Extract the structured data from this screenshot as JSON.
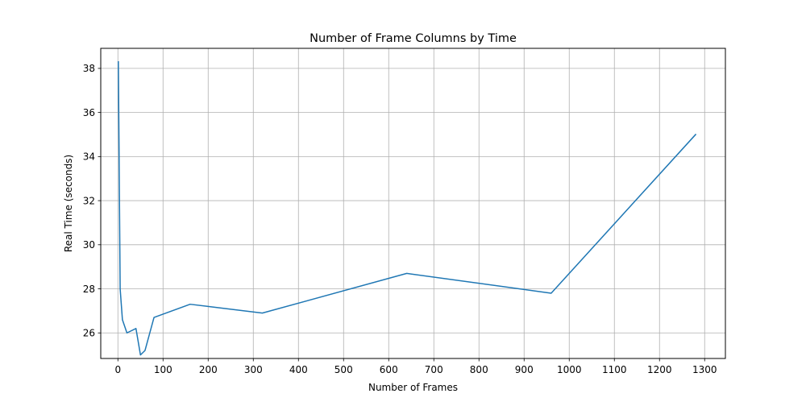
{
  "chart_data": {
    "type": "line",
    "title": "Number of Frame Columns by Time",
    "xlabel": "Number of Frames",
    "ylabel": "Real Time (seconds)",
    "xlim": [
      -38,
      1346
    ],
    "ylim": [
      24.84,
      38.91
    ],
    "grid": true,
    "line_color": "#1f77b4",
    "grid_color": "#b0b0b0",
    "x_ticks": [
      0,
      100,
      200,
      300,
      400,
      500,
      600,
      700,
      800,
      900,
      1000,
      1100,
      1200,
      1300
    ],
    "x_tick_labels": [
      "0",
      "100",
      "200",
      "300",
      "400",
      "500",
      "600",
      "700",
      "800",
      "900",
      "1000",
      "1100",
      "1200",
      "1300"
    ],
    "y_ticks": [
      26,
      28,
      30,
      32,
      34,
      36,
      38
    ],
    "y_tick_labels": [
      "26",
      "28",
      "30",
      "32",
      "34",
      "36",
      "38"
    ],
    "series": [
      {
        "x": [
          1,
          5,
          10,
          20,
          40,
          50,
          60,
          80,
          160,
          320,
          640,
          960,
          1280
        ],
        "y": [
          38.3,
          28.0,
          26.6,
          26.0,
          26.2,
          25.0,
          25.2,
          26.7,
          27.3,
          26.9,
          28.7,
          27.8,
          35.0
        ]
      }
    ]
  }
}
